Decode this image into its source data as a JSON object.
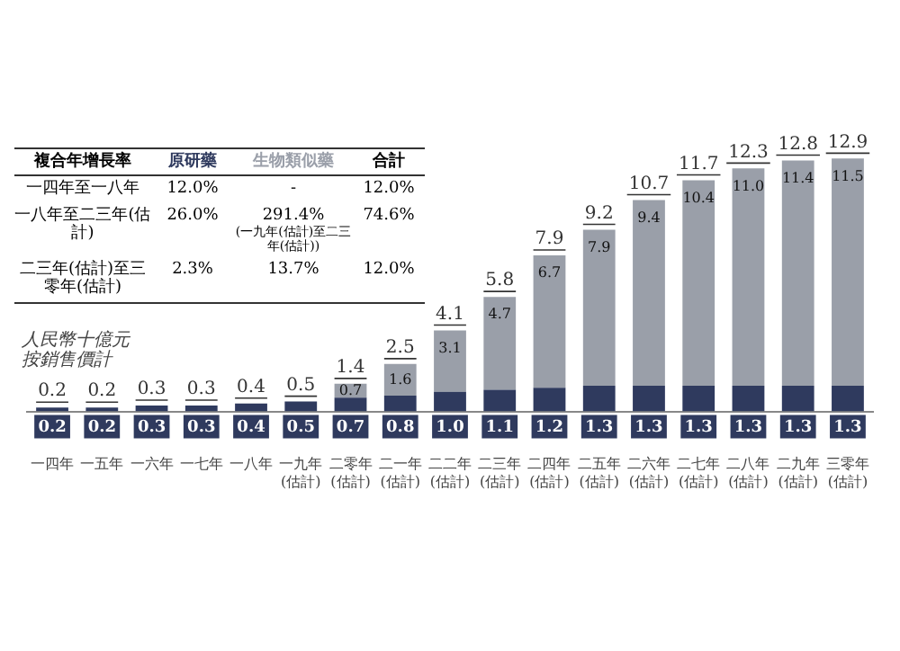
{
  "chart_data": {
    "type": "bar",
    "stacked": true,
    "ylabel": "人民幣十億元",
    "subtitle": "按銷售價計",
    "categories": [
      "一四年",
      "一五年",
      "一六年",
      "一七年",
      "一八年",
      "一九年\n(估計)",
      "二零年\n(估計)",
      "二一年\n(估計)",
      "二二年\n(估計)",
      "二三年\n(估計)",
      "二四年\n(估計)",
      "二五年\n(估計)",
      "二六年\n(估計)",
      "二七年\n(估計)",
      "二八年\n(估計)",
      "二九年\n(估計)",
      "三零年\n(估計)"
    ],
    "series": [
      {
        "name": "原研藥",
        "color": "#2f3a5e",
        "values": [
          0.2,
          0.2,
          0.3,
          0.3,
          0.4,
          0.5,
          0.7,
          0.8,
          1.0,
          1.1,
          1.2,
          1.3,
          1.3,
          1.3,
          1.3,
          1.3,
          1.3
        ],
        "value_labels": [
          "0.2",
          "0.2",
          "0.3",
          "0.3",
          "0.4",
          "0.5",
          "0.7",
          "0.8",
          "1.0",
          "1.1",
          "1.2",
          "1.3",
          "1.3",
          "1.3",
          "1.3",
          "1.3",
          "1.3"
        ]
      },
      {
        "name": "生物類似藥",
        "color": "#9a9fa9",
        "values": [
          null,
          null,
          null,
          null,
          null,
          null,
          0.7,
          1.6,
          3.1,
          4.7,
          6.7,
          7.9,
          9.4,
          10.4,
          11.0,
          11.4,
          11.5
        ],
        "value_labels": [
          null,
          null,
          null,
          null,
          null,
          null,
          "0.7",
          "1.6",
          "3.1",
          "4.7",
          "6.7",
          "7.9",
          "9.4",
          "10.4",
          "11.0",
          "11.4",
          "11.5"
        ]
      }
    ],
    "totals": [
      "0.2",
      "0.2",
      "0.3",
      "0.3",
      "0.4",
      "0.5",
      "1.4",
      "2.5",
      "4.1",
      "5.8",
      "7.9",
      "9.2",
      "10.7",
      "11.7",
      "12.3",
      "12.8",
      "12.9"
    ],
    "grid": false,
    "legend": false,
    "annotations": [
      "複合年增長率",
      "合計",
      "一四年至一八年",
      "12.0%",
      "-",
      "12.0%",
      "一八年至二三年(估計)",
      "26.0%",
      "291.4%\n(一九年(估計)至二三年(估計))",
      "74.6%",
      "二三年(估計)至三零年(估計)",
      "2.3%",
      "13.7%",
      "12.0%"
    ]
  }
}
